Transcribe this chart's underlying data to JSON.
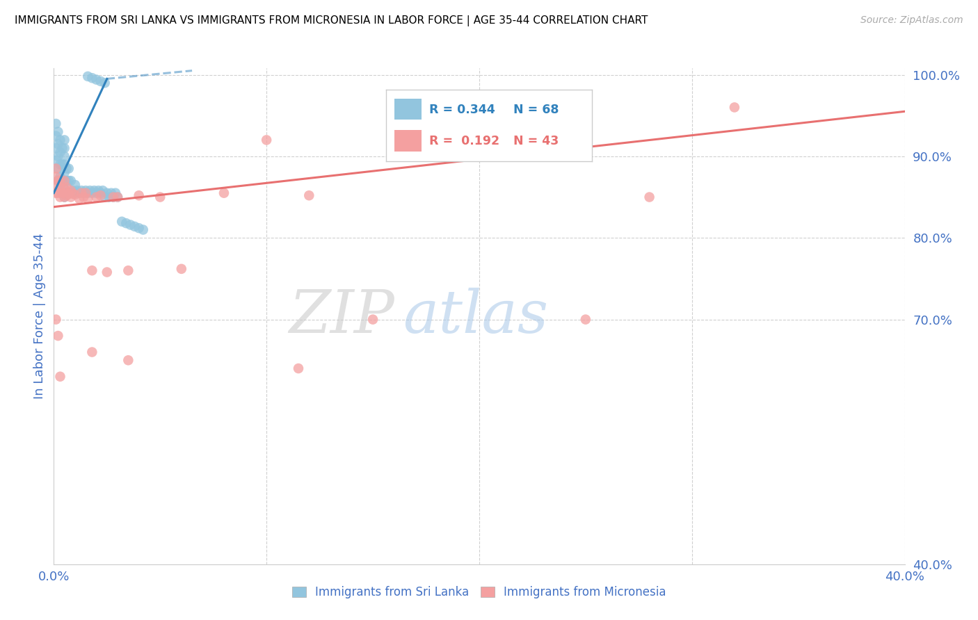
{
  "title": "IMMIGRANTS FROM SRI LANKA VS IMMIGRANTS FROM MICRONESIA IN LABOR FORCE | AGE 35-44 CORRELATION CHART",
  "source": "Source: ZipAtlas.com",
  "ylabel": "In Labor Force | Age 35-44",
  "xlim": [
    0.0,
    0.4
  ],
  "ylim": [
    0.4,
    1.008
  ],
  "color_sri_lanka": "#92c5de",
  "color_micronesia": "#f4a0a0",
  "color_trendline_sri_lanka": "#3182bd",
  "color_trendline_micronesia": "#e87070",
  "color_axis_labels": "#4472c4",
  "color_grid": "#d0d0d0",
  "watermark_zip": "ZIP",
  "watermark_atlas": "atlas",
  "legend_r1": "R = 0.344",
  "legend_n1": "N = 68",
  "legend_r2": "R =  0.192",
  "legend_n2": "N = 43",
  "sl_x": [
    0.001,
    0.001,
    0.001,
    0.001,
    0.002,
    0.002,
    0.002,
    0.002,
    0.002,
    0.003,
    0.003,
    0.003,
    0.003,
    0.003,
    0.004,
    0.004,
    0.004,
    0.004,
    0.005,
    0.005,
    0.005,
    0.005,
    0.005,
    0.005,
    0.005,
    0.005,
    0.006,
    0.006,
    0.006,
    0.007,
    0.007,
    0.007,
    0.008,
    0.008,
    0.009,
    0.01,
    0.01,
    0.011,
    0.012,
    0.013,
    0.014,
    0.015,
    0.016,
    0.017,
    0.018,
    0.019,
    0.02,
    0.021,
    0.022,
    0.023,
    0.024,
    0.025,
    0.026,
    0.027,
    0.028,
    0.029,
    0.03,
    0.032,
    0.034,
    0.036,
    0.038,
    0.04,
    0.042,
    0.016,
    0.018,
    0.02,
    0.022,
    0.024
  ],
  "sl_y": [
    0.895,
    0.91,
    0.925,
    0.94,
    0.87,
    0.885,
    0.9,
    0.915,
    0.93,
    0.86,
    0.875,
    0.89,
    0.905,
    0.92,
    0.855,
    0.87,
    0.89,
    0.91,
    0.85,
    0.86,
    0.87,
    0.88,
    0.89,
    0.9,
    0.91,
    0.92,
    0.855,
    0.87,
    0.885,
    0.855,
    0.87,
    0.885,
    0.855,
    0.87,
    0.858,
    0.855,
    0.865,
    0.858,
    0.855,
    0.858,
    0.855,
    0.858,
    0.855,
    0.858,
    0.855,
    0.858,
    0.855,
    0.858,
    0.855,
    0.858,
    0.85,
    0.855,
    0.85,
    0.855,
    0.85,
    0.855,
    0.85,
    0.82,
    0.818,
    0.816,
    0.814,
    0.812,
    0.81,
    0.998,
    0.996,
    0.994,
    0.992,
    0.99
  ],
  "mi_x": [
    0.001,
    0.001,
    0.001,
    0.001,
    0.002,
    0.002,
    0.003,
    0.003,
    0.003,
    0.004,
    0.005,
    0.005,
    0.005,
    0.006,
    0.006,
    0.007,
    0.008,
    0.008,
    0.009,
    0.01,
    0.012,
    0.013,
    0.014,
    0.015,
    0.016,
    0.018,
    0.02,
    0.022,
    0.025,
    0.028,
    0.03,
    0.035,
    0.04,
    0.05,
    0.06,
    0.08,
    0.1,
    0.12,
    0.15,
    0.2,
    0.25,
    0.28,
    0.32
  ],
  "mi_y": [
    0.855,
    0.865,
    0.875,
    0.885,
    0.855,
    0.87,
    0.85,
    0.86,
    0.87,
    0.855,
    0.85,
    0.86,
    0.87,
    0.852,
    0.862,
    0.854,
    0.85,
    0.858,
    0.854,
    0.853,
    0.848,
    0.855,
    0.85,
    0.855,
    0.848,
    0.76,
    0.85,
    0.852,
    0.758,
    0.85,
    0.85,
    0.76,
    0.852,
    0.85,
    0.762,
    0.855,
    0.92,
    0.852,
    0.7,
    0.955,
    0.7,
    0.85,
    0.96
  ],
  "mi_outlier_x": [
    0.001,
    0.002,
    0.003,
    0.018,
    0.035,
    0.115
  ],
  "mi_outlier_y": [
    0.7,
    0.68,
    0.63,
    0.66,
    0.65,
    0.64
  ]
}
